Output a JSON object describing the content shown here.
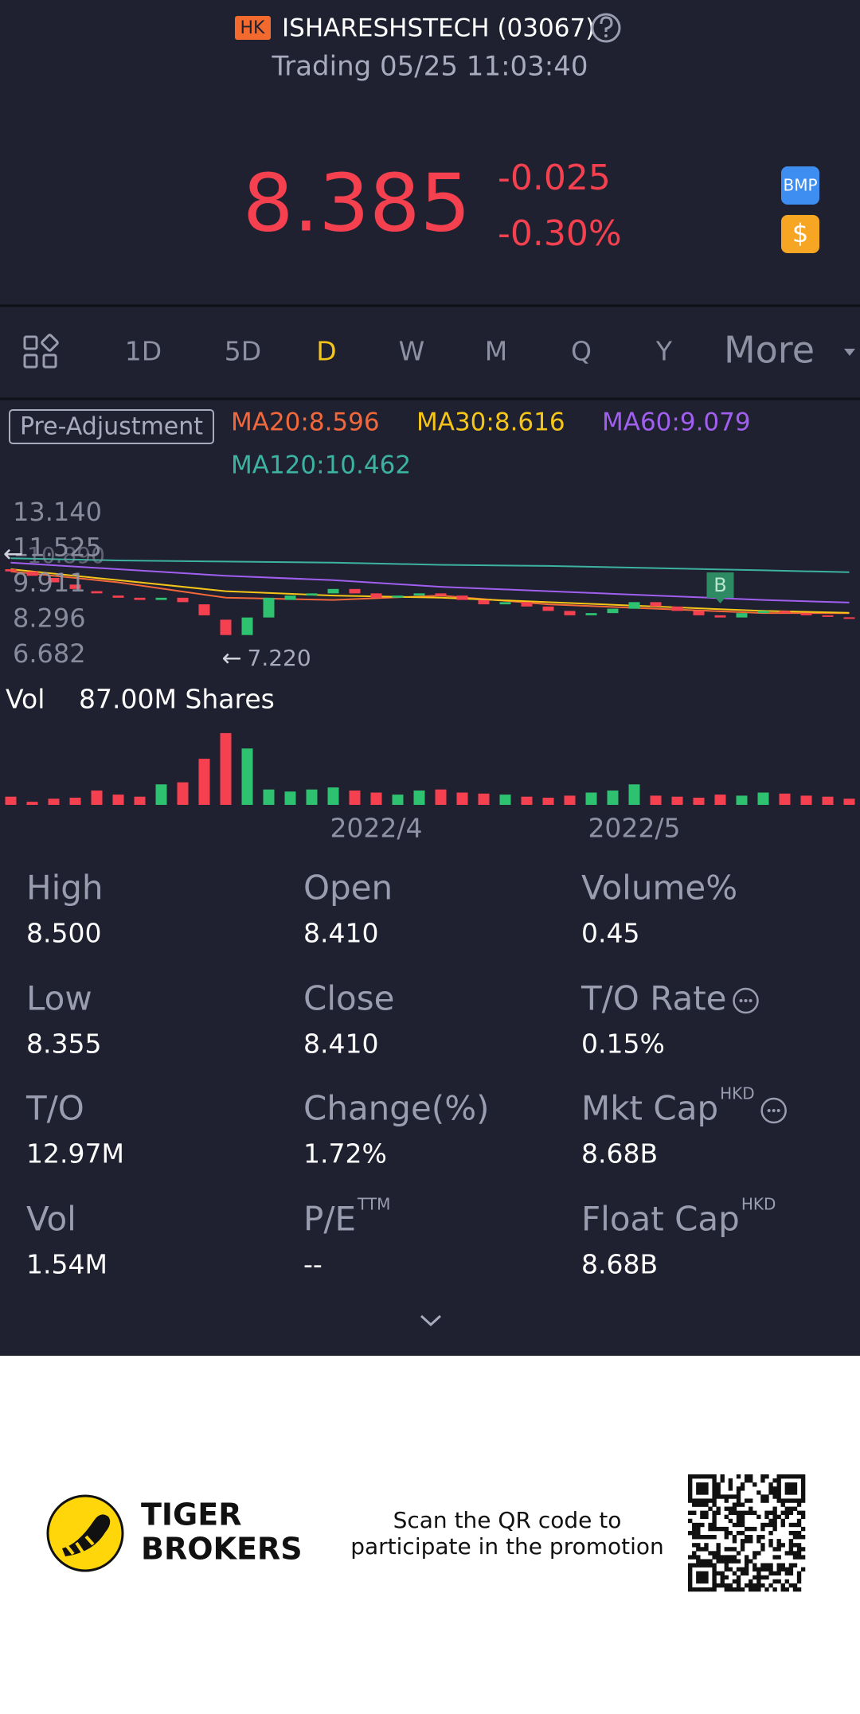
{
  "header": {
    "badge": "HK",
    "title": "ISHARESHSTECH (03067)",
    "status": "Trading 05/25 11:03:40"
  },
  "quote": {
    "price": "8.385",
    "change": "-0.025",
    "change_pct": "-0.30%",
    "icons": [
      "BMP",
      "$"
    ]
  },
  "tabs": {
    "items": [
      "1D",
      "5D",
      "D",
      "W",
      "M",
      "Q",
      "Y",
      "More"
    ],
    "active": 2
  },
  "adjust_label": "Pre-Adjustment",
  "chart_data": {
    "type": "candlestick",
    "categories": [
      null,
      null,
      null,
      null,
      null,
      null,
      null,
      null,
      null,
      null,
      null,
      null,
      null,
      null,
      null,
      null,
      null,
      "2022/4",
      null,
      null,
      null,
      null,
      null,
      null,
      null,
      null,
      null,
      null,
      null,
      "2022/5",
      null,
      null,
      null,
      null,
      null,
      null,
      null,
      null,
      null,
      null
    ],
    "open": [
      10.6,
      10.5,
      10.2,
      9.9,
      9.6,
      9.4,
      9.3,
      9.2,
      9.3,
      9.0,
      8.3,
      7.6,
      8.4,
      9.2,
      9.4,
      9.5,
      9.7,
      9.5,
      9.3,
      9.4,
      9.5,
      9.4,
      9.2,
      9.0,
      9.1,
      8.9,
      8.7,
      8.5,
      8.6,
      8.8,
      9.1,
      8.9,
      8.7,
      8.5,
      8.4,
      8.6,
      8.7,
      8.6,
      8.5,
      8.41
    ],
    "close": [
      10.5,
      10.3,
      10.0,
      9.7,
      9.5,
      9.3,
      9.2,
      9.3,
      9.1,
      8.5,
      7.6,
      8.4,
      9.3,
      9.4,
      9.5,
      9.7,
      9.5,
      9.3,
      9.4,
      9.5,
      9.4,
      9.2,
      9.0,
      9.1,
      8.9,
      8.7,
      8.5,
      8.6,
      8.8,
      9.1,
      8.9,
      8.7,
      8.5,
      8.4,
      8.6,
      8.7,
      8.6,
      8.5,
      8.45,
      8.385
    ],
    "up_color": "#2ec16f",
    "down_color": "#f5414f",
    "ylim": [
      6.682,
      13.14
    ],
    "yticks": [
      {
        "value": 13.14,
        "label": "13.140"
      },
      11.525,
      9.911,
      8.296,
      6.682
    ],
    "series": [
      {
        "name": "MA20:8.596",
        "color": "#f2683a",
        "x": [
          0,
          5,
          10,
          15,
          20,
          25,
          30,
          35,
          39
        ],
        "values": [
          10.5,
          10.0,
          9.3,
          9.2,
          9.4,
          9.0,
          8.8,
          8.6,
          8.596
        ]
      },
      {
        "name": "MA30:8.616",
        "color": "#f5c518",
        "x": [
          0,
          5,
          10,
          15,
          20,
          25,
          30,
          35,
          39
        ],
        "values": [
          10.6,
          10.1,
          9.6,
          9.4,
          9.3,
          9.1,
          8.9,
          8.7,
          8.616
        ]
      },
      {
        "name": "MA60:9.079",
        "color": "#a15ff0",
        "x": [
          0,
          5,
          10,
          15,
          20,
          25,
          30,
          35,
          39
        ],
        "values": [
          10.9,
          10.6,
          10.3,
          10.1,
          9.8,
          9.6,
          9.4,
          9.2,
          9.079
        ]
      },
      {
        "name": "MA120:10.462",
        "color": "#3bb3a0",
        "x": [
          0,
          5,
          10,
          15,
          20,
          25,
          30,
          35,
          39
        ],
        "values": [
          11.1,
          11.0,
          10.95,
          10.9,
          10.8,
          10.75,
          10.65,
          10.55,
          10.462
        ]
      }
    ],
    "low_label": "7.220",
    "high_label": "10.890",
    "marker": "B",
    "volume": {
      "label": "Vol",
      "scale_label": "87.00M Shares",
      "ylim": [
        0,
        87
      ],
      "values": [
        8,
        3,
        6,
        7,
        14,
        10,
        8,
        20,
        22,
        45,
        70,
        55,
        15,
        13,
        15,
        17,
        14,
        12,
        10,
        14,
        15,
        12,
        11,
        10,
        8,
        7,
        9,
        12,
        14,
        20,
        9,
        8,
        7,
        10,
        9,
        12,
        11,
        9,
        8,
        6
      ]
    }
  },
  "stats": [
    [
      {
        "label": "High",
        "value": "8.500"
      },
      {
        "label": "Open",
        "value": "8.410"
      },
      {
        "label": "Volume%",
        "value": "0.45"
      }
    ],
    [
      {
        "label": "Low",
        "value": "8.355"
      },
      {
        "label": "Close",
        "value": "8.410"
      },
      {
        "label": "T/O Rate",
        "value": "0.15%",
        "info": true
      }
    ],
    [
      {
        "label": "T/O",
        "value": "12.97M"
      },
      {
        "label": "Change(%)",
        "value": "1.72%"
      },
      {
        "label": "Mkt Cap",
        "sup": "HKD",
        "value": "8.68B",
        "info": true
      }
    ],
    [
      {
        "label": "Vol",
        "value": "1.54M"
      },
      {
        "label": "P/E",
        "sup": "TTM",
        "value": "--"
      },
      {
        "label": "Float Cap",
        "sup": "HKD",
        "value": "8.68B"
      }
    ]
  ],
  "footer": {
    "brand": [
      "TIGER",
      "BROKERS"
    ],
    "promo": [
      "Scan the QR code to",
      "participate in the promotion"
    ]
  }
}
